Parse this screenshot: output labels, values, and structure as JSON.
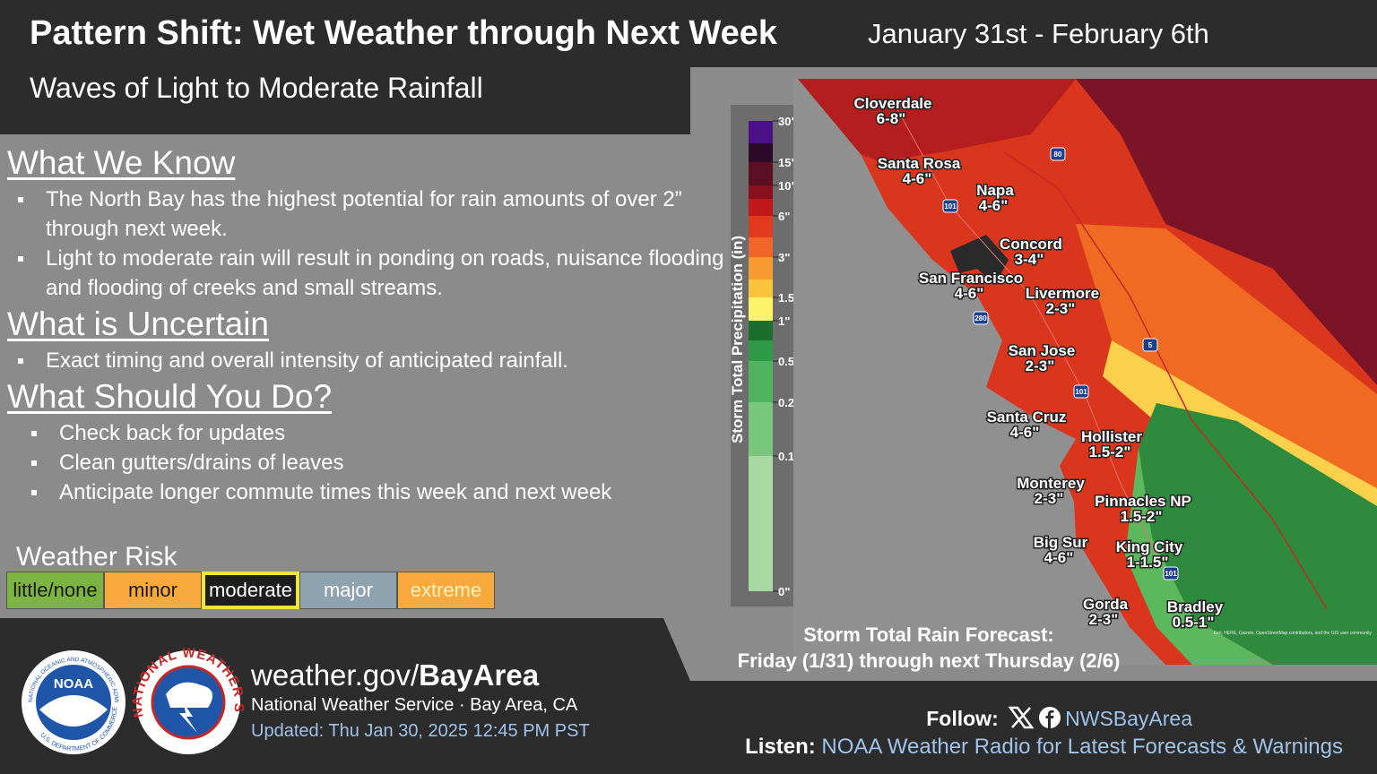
{
  "header": {
    "title": "Pattern Shift: Wet Weather through Next Week",
    "dates": "January 31st - February 6th",
    "subtitle": "Waves of Light to Moderate Rainfall"
  },
  "sections": [
    {
      "heading": "What We Know",
      "bullets": [
        "The North Bay has the highest potential for rain amounts of over 2” through next week.",
        "Light to moderate rain will result in ponding on roads, nuisance flooding and flooding of creeks and small streams."
      ]
    },
    {
      "heading": "What is Uncertain",
      "bullets": [
        "Exact timing and overall intensity of anticipated rainfall."
      ]
    },
    {
      "heading": "What Should You Do?",
      "bullets": [
        "Check back for updates",
        "Clean gutters/drains of leaves",
        "Anticipate longer commute times this week and next week"
      ]
    }
  ],
  "risk": {
    "title": "Weather Risk",
    "levels": [
      "little/none",
      "minor",
      "moderate",
      "major",
      "extreme"
    ],
    "highlighted": "moderate"
  },
  "legend": {
    "title": "Storm Total Precipitation (in)",
    "ticks": [
      "30\"",
      "15\"",
      "10\"",
      "6\"",
      "3\"",
      "1.5\"",
      "1\"",
      "0.5\"",
      "0.2\"",
      "0.1\"",
      "0\""
    ]
  },
  "map": {
    "places": [
      {
        "name": "Cloverdale",
        "amount": "6-8\""
      },
      {
        "name": "Santa Rosa",
        "amount": "4-6\""
      },
      {
        "name": "Napa",
        "amount": "4-6\""
      },
      {
        "name": "Concord",
        "amount": "3-4\""
      },
      {
        "name": "San Francisco",
        "amount": "4-6\""
      },
      {
        "name": "Livermore",
        "amount": "2-3\""
      },
      {
        "name": "San Jose",
        "amount": "2-3\""
      },
      {
        "name": "Santa Cruz",
        "amount": "4-6\""
      },
      {
        "name": "Hollister",
        "amount": "1.5-2\""
      },
      {
        "name": "Monterey",
        "amount": "2-3\""
      },
      {
        "name": "Pinnacles NP",
        "amount": "1.5-2\""
      },
      {
        "name": "Big Sur",
        "amount": "4-6\""
      },
      {
        "name": "King City",
        "amount": "1-1.5\""
      },
      {
        "name": "Gorda",
        "amount": "2-3\""
      },
      {
        "name": "Bradley",
        "amount": "0.5-1\""
      }
    ],
    "shields": [
      "80",
      "101",
      "280",
      "5",
      "101",
      "101"
    ],
    "attribution": "Esri, HERE, Garmin, OpenStreetMap contributors, and the GIS user community",
    "caption": [
      "Storm Total Rain Forecast:",
      "Friday (1/31)  through next Thursday (2/6)"
    ]
  },
  "footer": {
    "site_prefix": "weather.gov/",
    "site_bold": "BayArea",
    "office": "National Weather Service · Bay Area, CA",
    "updated": "Updated: Thu Jan 30, 2025 12:45 PM PST",
    "follow_label": "Follow:",
    "handle": "NWSBayArea",
    "listen_label": "Listen:",
    "listen_text": "NOAA Weather Radio for Latest Forecasts & Warnings"
  },
  "logos": {
    "noaa": "NOAA",
    "noaa_ring_top": "NATIONAL OCEANIC AND ATMOSPHERIC ADMINISTRATION",
    "noaa_ring_bottom": "U.S. DEPARTMENT OF COMMERCE",
    "nws_ring": "NATIONAL WEATHER SERVICE"
  }
}
